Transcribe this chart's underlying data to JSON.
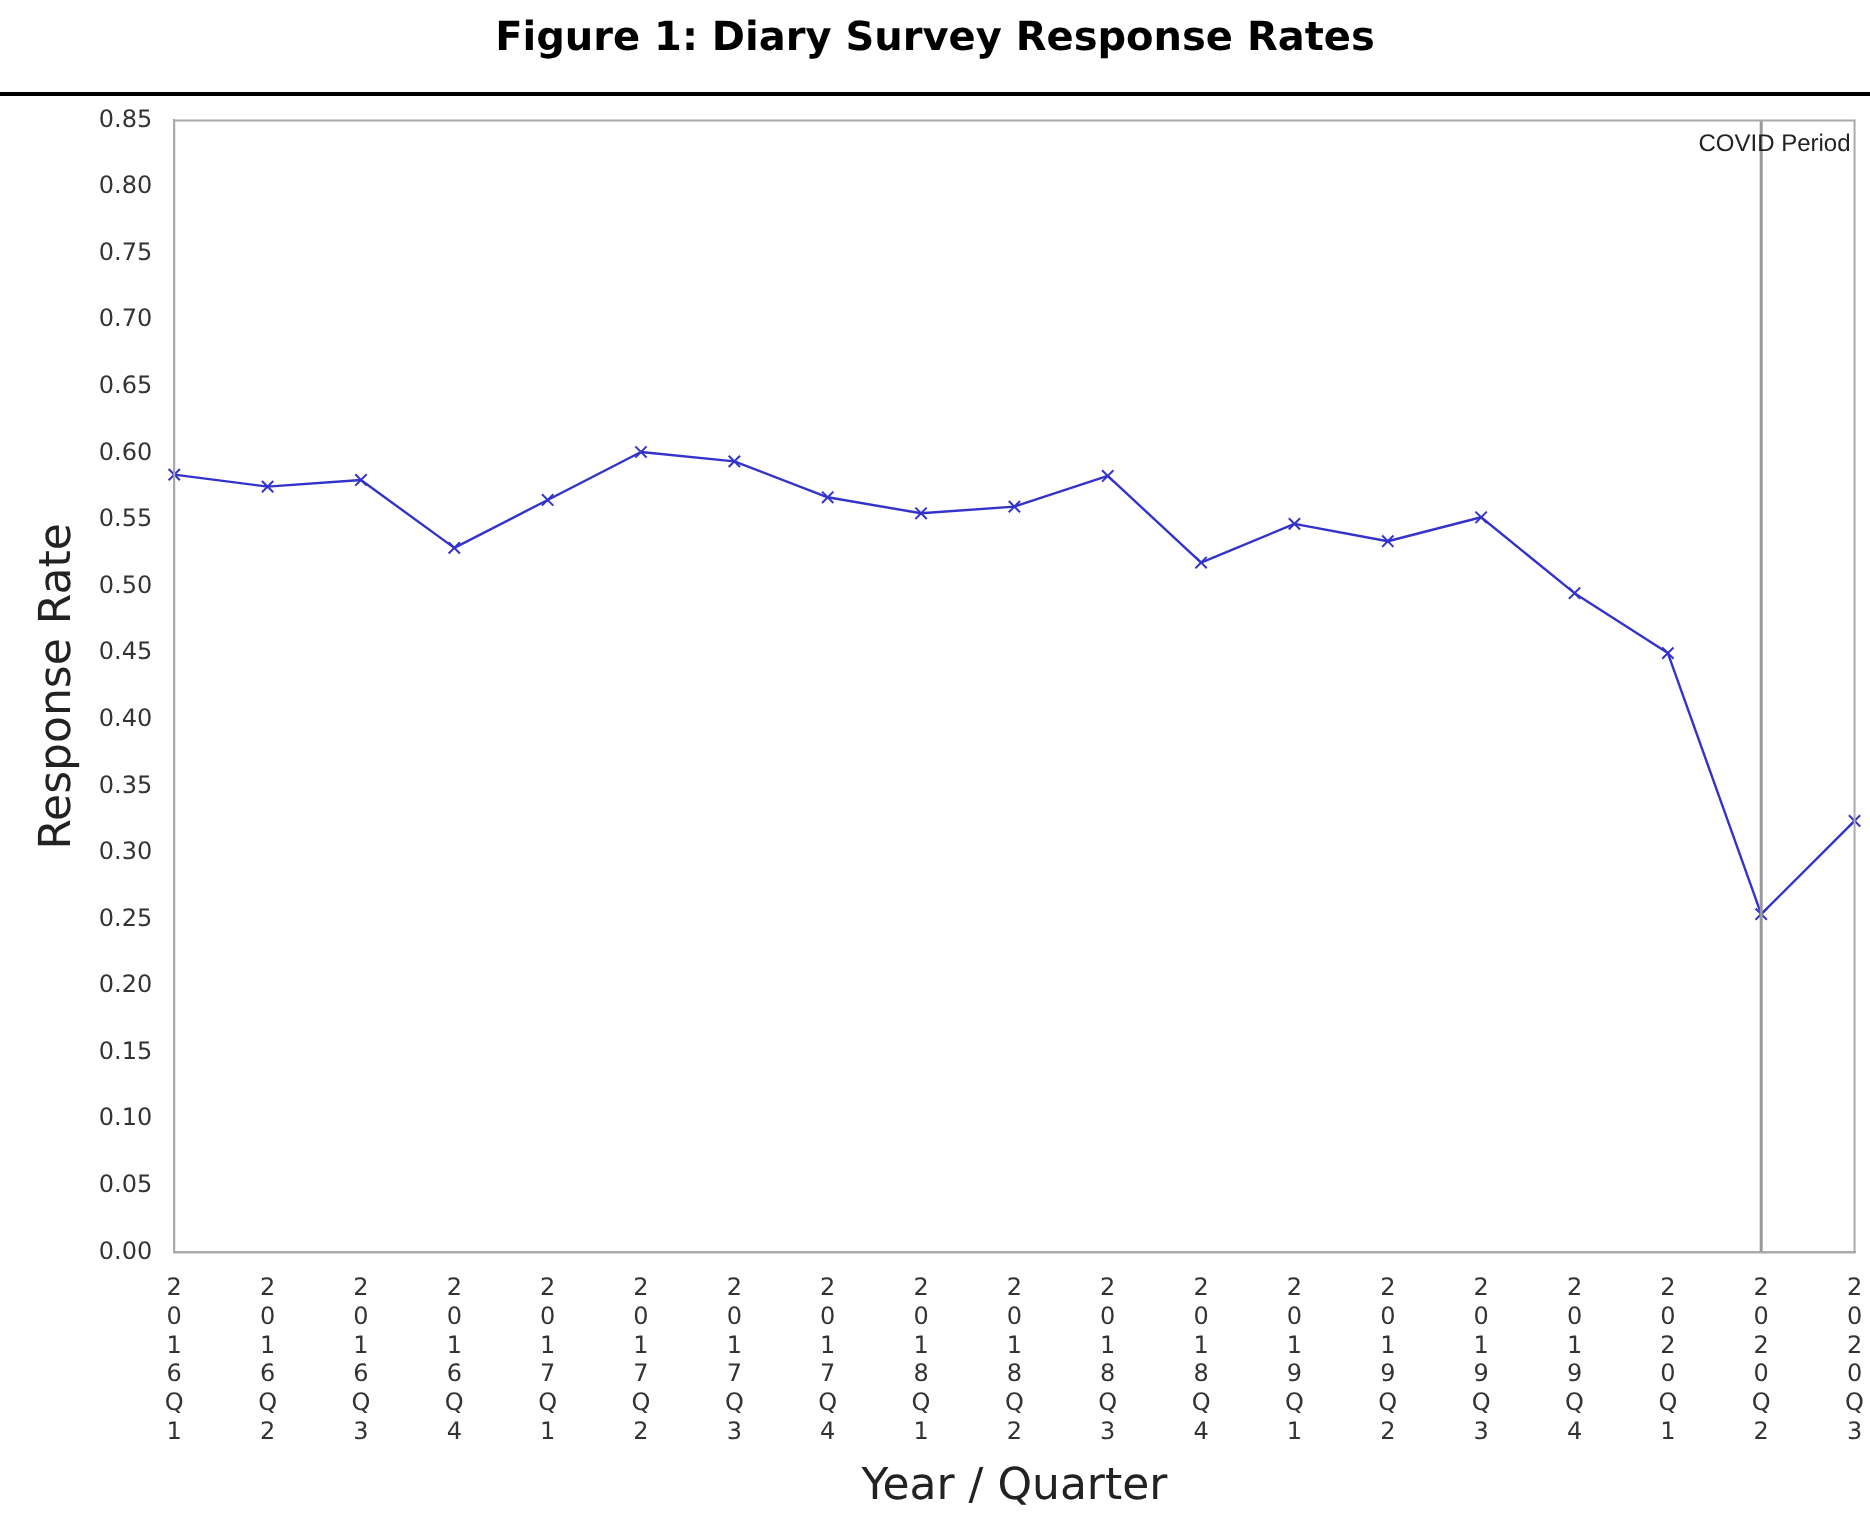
{
  "chart_data": {
    "type": "line",
    "title": "Figure 1: Diary Survey Response Rates",
    "xlabel": "Year / Quarter",
    "ylabel": "Response Rate",
    "categories": [
      "2016Q1",
      "2016Q2",
      "2016Q3",
      "2016Q4",
      "2017Q1",
      "2017Q2",
      "2017Q3",
      "2017Q4",
      "2018Q1",
      "2018Q2",
      "2018Q3",
      "2018Q4",
      "2019Q1",
      "2019Q2",
      "2019Q3",
      "2019Q4",
      "2020Q1",
      "2020Q2",
      "2020Q3"
    ],
    "series": [
      {
        "color": "#3333cc",
        "values": [
          0.584,
          0.575,
          0.58,
          0.529,
          0.565,
          0.601,
          0.594,
          0.567,
          0.555,
          0.56,
          0.583,
          0.518,
          0.547,
          0.534,
          0.552,
          0.495,
          0.45,
          0.254,
          0.324
        ]
      }
    ],
    "ylim": [
      0,
      0.85
    ],
    "yticks": [
      {
        "value": 0,
        "label": "0.00"
      },
      {
        "value": 0.05,
        "label": "0.05"
      },
      {
        "value": 0.1,
        "label": "0.10"
      },
      {
        "value": 0.15,
        "label": "0.15"
      },
      {
        "value": 0.2,
        "label": "0.20"
      },
      {
        "value": 0.25,
        "label": "0.25"
      },
      {
        "value": 0.3,
        "label": "0.30"
      },
      {
        "value": 0.35,
        "label": "0.35"
      },
      {
        "value": 0.4,
        "label": "0.40"
      },
      {
        "value": 0.45,
        "label": "0.45"
      },
      {
        "value": 0.5,
        "label": "0.50"
      },
      {
        "value": 0.55,
        "label": "0.55"
      },
      {
        "value": 0.6,
        "label": "0.60"
      },
      {
        "value": 0.65,
        "label": "0.65"
      },
      {
        "value": 0.7,
        "label": "0.70"
      },
      {
        "value": 0.75,
        "label": "0.75"
      },
      {
        "value": 0.8,
        "label": "0.80"
      },
      {
        "value": 0.85,
        "label": "0.85"
      }
    ],
    "ref_lines": [
      {
        "axis": "x",
        "value": "2020Q2",
        "label": "COVID Period",
        "color": "#999999"
      }
    ],
    "grid": false,
    "legend": false,
    "marker": "cross",
    "line_style": "solid"
  }
}
